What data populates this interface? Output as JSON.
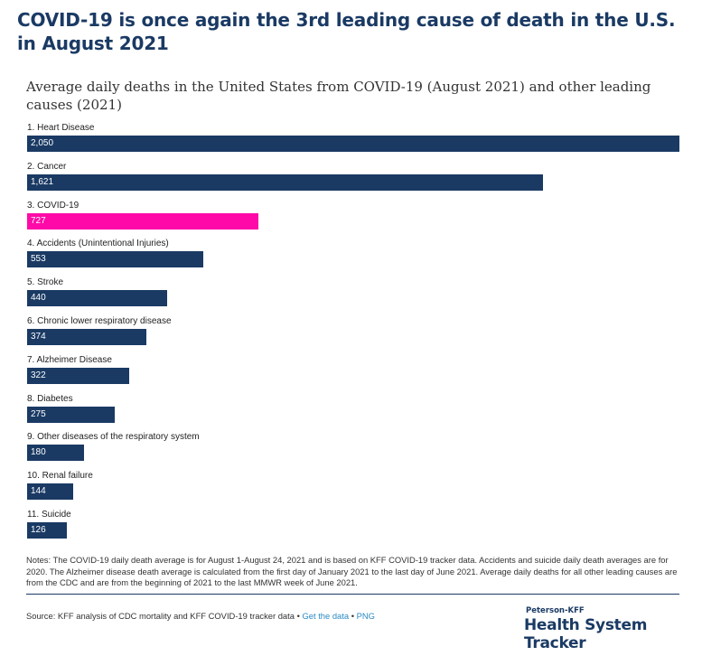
{
  "headline": "COVID-19 is once again the 3rd leading cause of death in the U.S. in August 2021",
  "chart_data": {
    "type": "bar",
    "orientation": "horizontal",
    "title": "Average daily deaths in the United States from COVID-19 (August 2021) and other leading causes (2021)",
    "categories": [
      "1. Heart Disease",
      "2. Cancer",
      "3. COVID-19",
      "4. Accidents (Unintentional Injuries)",
      "5. Stroke",
      "6. Chronic lower respiratory disease",
      "7. Alzheimer Disease",
      "8. Diabetes",
      "9. Other diseases of the respiratory system",
      "10. Renal failure",
      "11. Suicide"
    ],
    "values": [
      2050,
      1621,
      727,
      553,
      440,
      374,
      322,
      275,
      180,
      144,
      126
    ],
    "value_labels": [
      "2,050",
      "1,621",
      "727",
      "553",
      "440",
      "374",
      "322",
      "275",
      "180",
      "144",
      "126"
    ],
    "xlim": [
      0,
      2050
    ],
    "grid": false,
    "colors": {
      "default": "#1a3a64",
      "highlight": "#ff0aa8"
    },
    "highlight_index": 2
  },
  "notes": "Notes: The COVID-19 daily death average is for August 1-August 24, 2021 and is based on KFF COVID-19 tracker data. Accidents and suicide daily death averages  are for 2020. The Alzheimer disease death average is calculated from the first day of January 2021 to the last day of June 2021.  Average daily deaths for all other leading causes are from the CDC and are from the beginning of 2021 to the last MMWR  week of June 2021.",
  "source": {
    "text": "Source: KFF analysis of CDC mortality and KFF COVID-19 tracker data",
    "separator": " • ",
    "get_data_link": "Get the data",
    "png_link": "PNG"
  },
  "brand": {
    "small": "Peterson-KFF",
    "large": "Health System Tracker"
  }
}
